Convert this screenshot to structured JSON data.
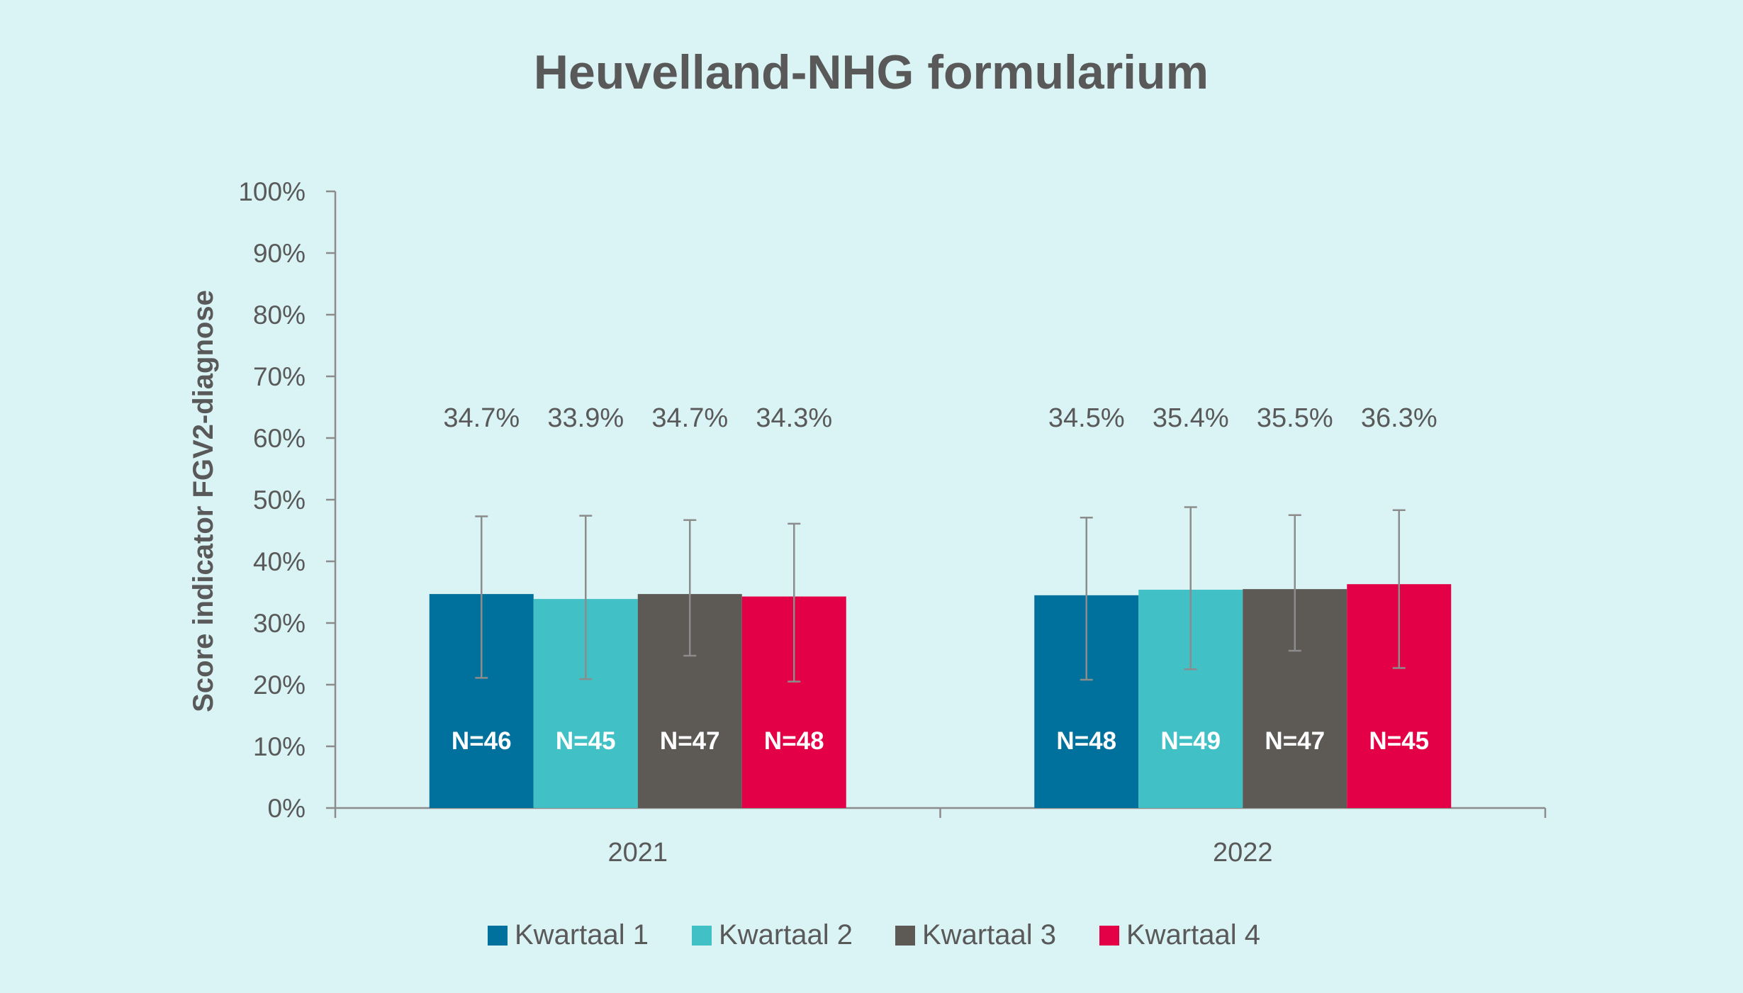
{
  "chart_data": {
    "type": "bar",
    "title": "Heuvelland-NHG formularium",
    "ylabel": "Score indicator FGV2-diagnose",
    "xlabel": "",
    "ylim": [
      0,
      100
    ],
    "yticks": [
      "0%",
      "10%",
      "20%",
      "30%",
      "40%",
      "50%",
      "60%",
      "70%",
      "80%",
      "90%",
      "100%"
    ],
    "categories": [
      "2021",
      "2022"
    ],
    "legend_position": "bottom",
    "grid": false,
    "series": [
      {
        "name": "Kwartaal 1",
        "color": "#00719c",
        "values": [
          34.7,
          34.5
        ],
        "labels": [
          "34.7%",
          "34.5%"
        ],
        "n_labels": [
          "N=46",
          "N=48"
        ],
        "err_low": [
          21.1,
          20.8
        ],
        "err_high": [
          47.3,
          47.1
        ]
      },
      {
        "name": "Kwartaal 2",
        "color": "#41c1c6",
        "values": [
          33.9,
          35.4
        ],
        "labels": [
          "33.9%",
          "35.4%"
        ],
        "n_labels": [
          "N=45",
          "N=49"
        ],
        "err_low": [
          20.9,
          22.5
        ],
        "err_high": [
          47.4,
          48.8
        ]
      },
      {
        "name": "Kwartaal 3",
        "color": "#5d5955",
        "values": [
          34.7,
          35.5
        ],
        "labels": [
          "34.7%",
          "35.5%"
        ],
        "n_labels": [
          "N=47",
          "N=47"
        ],
        "err_low": [
          24.7,
          25.5
        ],
        "err_high": [
          46.7,
          47.5
        ]
      },
      {
        "name": "Kwartaal 4",
        "color": "#e40046",
        "values": [
          34.3,
          36.3
        ],
        "labels": [
          "34.3%",
          "36.3%"
        ],
        "n_labels": [
          "N=48",
          "N=45"
        ],
        "err_low": [
          20.5,
          22.7
        ],
        "err_high": [
          46.1,
          48.3
        ]
      }
    ]
  }
}
